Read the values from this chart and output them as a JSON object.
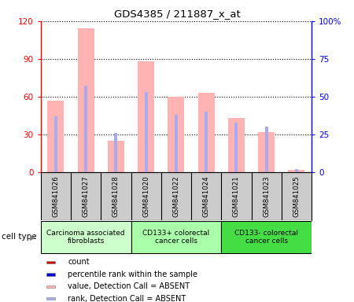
{
  "title": "GDS4385 / 211887_x_at",
  "samples": [
    "GSM841026",
    "GSM841027",
    "GSM841028",
    "GSM841020",
    "GSM841022",
    "GSM841024",
    "GSM841021",
    "GSM841023",
    "GSM841025"
  ],
  "pink_values": [
    57,
    114,
    25,
    88,
    60,
    63,
    43,
    32,
    2
  ],
  "blue_rank_values": [
    37,
    57,
    26,
    53,
    38,
    40,
    33,
    30,
    2
  ],
  "groups": [
    {
      "label": "Carcinoma associated\nfibroblasts",
      "start": 0,
      "end": 3,
      "color": "#ccffcc"
    },
    {
      "label": "CD133+ colorectal\ncancer cells",
      "start": 3,
      "end": 6,
      "color": "#aaffaa"
    },
    {
      "label": "CD133- colorectal\ncancer cells",
      "start": 6,
      "end": 9,
      "color": "#44dd44"
    }
  ],
  "ylim_left": [
    0,
    120
  ],
  "ylim_right": [
    0,
    100
  ],
  "yticks_left": [
    0,
    30,
    60,
    90,
    120
  ],
  "ytick_labels_left": [
    "0",
    "30",
    "60",
    "90",
    "120"
  ],
  "yticks_right": [
    0,
    25,
    50,
    75,
    100
  ],
  "ytick_labels_right": [
    "0",
    "25",
    "50",
    "75",
    "100%"
  ],
  "pink_color": "#ffb3b3",
  "blue_color": "#aaaaee",
  "pink_bar_width": 0.55,
  "blue_bar_width": 0.1,
  "legend_items": [
    {
      "color": "#cc0000",
      "label": "count"
    },
    {
      "color": "#0000cc",
      "label": "percentile rank within the sample"
    },
    {
      "color": "#ffb3b3",
      "label": "value, Detection Call = ABSENT"
    },
    {
      "color": "#aaaaee",
      "label": "rank, Detection Call = ABSENT"
    }
  ],
  "group_colors": [
    "#ccffcc",
    "#aaffaa",
    "#44dd44"
  ],
  "sample_bg_color": "#cccccc",
  "cell_type_label": "cell type"
}
